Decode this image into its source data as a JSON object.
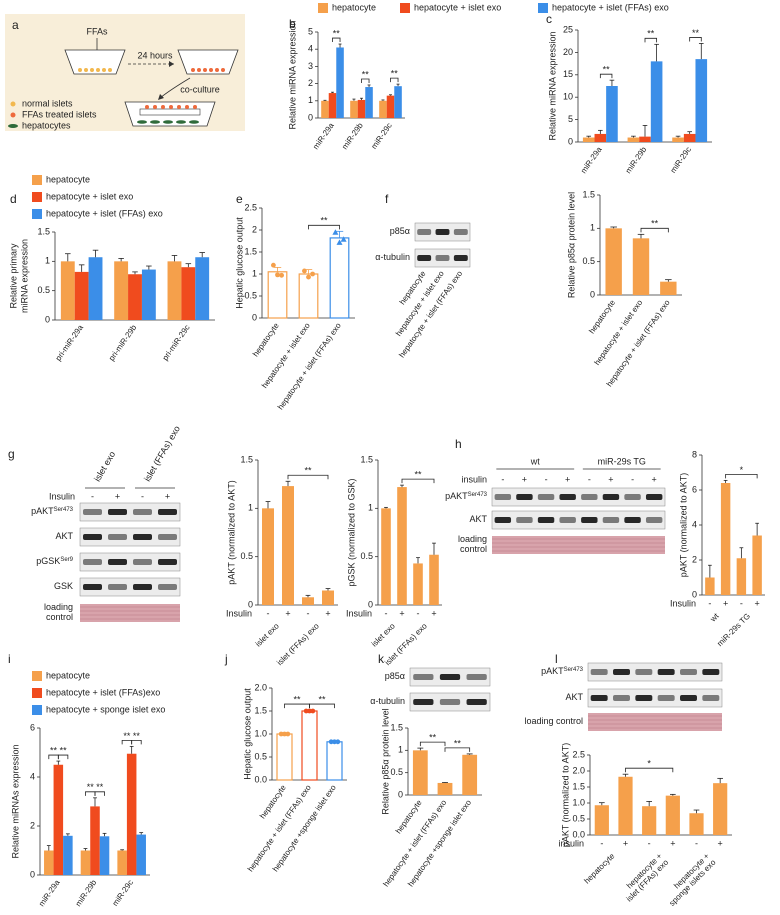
{
  "diagram": {
    "panel": "a",
    "ffas": "FFAs",
    "time": "24 hours",
    "coculture": "co-culture",
    "legend": [
      {
        "label": "normal islets",
        "color": "#f2b84e"
      },
      {
        "label": "FFAs treated islets",
        "color": "#ee6a3c"
      },
      {
        "label": "hepatocytes",
        "color": "#2f6b3a"
      }
    ]
  },
  "blots": [
    {
      "rows": [
        {
          "label": "p85α"
        },
        {
          "label": "α-tubulin"
        }
      ],
      "lanes": [
        "hepatocyte",
        "hepatocyte + islet exo",
        "hepatocyte + islet (FFAs) exo"
      ]
    },
    {
      "groups": [
        "islet exo",
        "islet (FFAs) exo"
      ],
      "insulin_label": "Insulin",
      "lanes": [
        "-",
        "+",
        "-",
        "+"
      ],
      "rows": [
        {
          "label": "pAKT",
          "sup": "Ser473"
        },
        {
          "label": "AKT"
        },
        {
          "label": "pGSK",
          "sup": "Ser9"
        },
        {
          "label": "GSK"
        },
        {
          "label": [
            "loading",
            "control"
          ]
        }
      ]
    },
    {
      "groups": [
        "wt",
        "miR-29s TG"
      ],
      "insulin_label": "insulin",
      "lanes": [
        "-",
        "+",
        "-",
        "+",
        "-",
        "+",
        "-",
        "+"
      ],
      "rows": [
        {
          "label": "pAKT",
          "sup": "Ser473"
        },
        {
          "label": "AKT"
        },
        {
          "label": [
            "loading",
            "control"
          ]
        }
      ]
    },
    {
      "rows": [
        {
          "label": "p85α"
        },
        {
          "label": "α-tubulin"
        }
      ]
    },
    {
      "rows": [
        {
          "label": "pAKT",
          "sup": "Ser473"
        },
        {
          "label": "AKT"
        },
        {
          "label": "loading control"
        }
      ]
    }
  ],
  "chart_data": [
    {
      "panel": "b",
      "type": "bar",
      "ylabel": "Relative miRNA expression",
      "categories": [
        "miR-29a",
        "miR-29b",
        "miR-29c"
      ],
      "series": [
        {
          "name": "hepatocyte",
          "color": "#f5a04b",
          "values": [
            1,
            1,
            1
          ],
          "errors": [
            0.03,
            0.1,
            0.05
          ]
        },
        {
          "name": "hepatocyte + islet exo",
          "color": "#f04b1e",
          "values": [
            1.45,
            1.05,
            1.3
          ],
          "errors": [
            0.05,
            0.1,
            0.05
          ]
        },
        {
          "name": "hepatocyte + islet (FFAs) exo",
          "color": "#3b8ee8",
          "values": [
            4.1,
            1.8,
            1.85
          ],
          "errors": [
            0.2,
            0.12,
            0.12
          ]
        }
      ],
      "ylim": [
        0,
        5
      ],
      "yticks": [
        0,
        1,
        2,
        3,
        4,
        5
      ],
      "legend": "top",
      "annotations": [
        {
          "text": "**",
          "category": 0,
          "between": [
            1,
            2
          ]
        },
        {
          "text": "**",
          "category": 1,
          "between": [
            1,
            2
          ]
        },
        {
          "text": "**",
          "category": 2,
          "between": [
            1,
            2
          ]
        }
      ]
    },
    {
      "panel": "c",
      "type": "bar",
      "ylabel": "Relative miRNA expression",
      "categories": [
        "miR-29a",
        "miR-29b",
        "miR-29c"
      ],
      "series": [
        {
          "color": "#f5a04b",
          "values": [
            1,
            1,
            1
          ],
          "errors": [
            0.3,
            0.3,
            0.3
          ]
        },
        {
          "color": "#f04b1e",
          "values": [
            1.8,
            1.2,
            1.8
          ],
          "errors": [
            0.8,
            2.5,
            0.5
          ]
        },
        {
          "color": "#3b8ee8",
          "values": [
            12.5,
            18,
            18.5
          ],
          "errors": [
            1.3,
            3.8,
            3.5
          ]
        }
      ],
      "ylim": [
        0,
        25
      ],
      "yticks": [
        0,
        5,
        10,
        15,
        20,
        25
      ],
      "annotations": [
        {
          "text": "**",
          "category": 0,
          "between": [
            1,
            2
          ]
        },
        {
          "text": "**",
          "category": 1,
          "between": [
            1,
            2
          ]
        },
        {
          "text": "**",
          "category": 2,
          "between": [
            1,
            2
          ]
        }
      ]
    },
    {
      "panel": "d",
      "type": "bar",
      "ylabel": [
        "Relative primary",
        "miRNA expression"
      ],
      "categories": [
        "pri-miR-29a",
        "pri-miR-29b",
        "pri-miR-29c"
      ],
      "series": [
        {
          "name": "hepatocyte",
          "color": "#f5a04b",
          "values": [
            1,
            1,
            1
          ],
          "errors": [
            0.13,
            0.05,
            0.1
          ]
        },
        {
          "name": "hepatocyte + islet exo",
          "color": "#f04b1e",
          "values": [
            0.82,
            0.78,
            0.9
          ],
          "errors": [
            0.12,
            0.04,
            0.06
          ]
        },
        {
          "name": "hepatocyte + islet (FFAs) exo",
          "color": "#3b8ee8",
          "values": [
            1.07,
            0.86,
            1.07
          ],
          "errors": [
            0.12,
            0.06,
            0.08
          ]
        }
      ],
      "ylim": [
        0,
        1.5
      ],
      "yticks": [
        0,
        0.5,
        1,
        1.5
      ],
      "legend": "upper left"
    },
    {
      "panel": "e",
      "type": "bar",
      "ylabel": "Hepatic glucose output",
      "categories": [
        "hepatocyte",
        "hepatocyte + islet exo",
        "hepatocyte + islet (FFAs) exo"
      ],
      "values": [
        1.05,
        1.0,
        1.82
      ],
      "errors": [
        0.1,
        0.1,
        0.15
      ],
      "colors": [
        "#f5a04b",
        "#f5a04b",
        "#3b8ee8"
      ],
      "hollow": true,
      "points": [
        [
          1.2,
          0.98,
          0.97
        ],
        [
          1.07,
          0.93,
          1.0
        ],
        [
          1.95,
          1.72,
          1.79
        ]
      ],
      "markers": [
        "circle",
        "circle",
        "triangle"
      ],
      "ylim": [
        0,
        2.5
      ],
      "yticks": [
        0,
        0.5,
        1,
        1.5,
        2,
        2.5
      ],
      "annotations": [
        {
          "text": "**",
          "between": [
            1,
            2
          ]
        }
      ]
    },
    {
      "panel": "f",
      "type": "bar",
      "ylabel": "Relative p85α protein level",
      "categories": [
        "hepatocyte",
        "hepatocyte + islet exo",
        "hepatocyte + islet (FFAs) exo"
      ],
      "values": [
        1,
        0.85,
        0.2
      ],
      "errors": [
        0.02,
        0.06,
        0.03
      ],
      "color": "#f5a04b",
      "ylim": [
        0,
        1.5
      ],
      "yticks": [
        0,
        0.5,
        1,
        1.5
      ],
      "annotations": [
        {
          "text": "**",
          "between": [
            1,
            2
          ]
        }
      ]
    },
    {
      "panel": "g",
      "type": "bar",
      "ylabel": "pAKT (normalized to AKT)",
      "categories": [
        "-",
        "+",
        "-",
        "+"
      ],
      "row_label": "Insulin",
      "group_labels": [
        "islet exo",
        "islet (FFAs) exo"
      ],
      "values": [
        1,
        1.23,
        0.08,
        0.15
      ],
      "errors": [
        0.07,
        0.05,
        0.02,
        0.02
      ],
      "color": "#f5a04b",
      "ylim": [
        0,
        1.5
      ],
      "yticks": [
        0,
        0.5,
        1,
        1.5
      ],
      "annotations": [
        {
          "text": "**",
          "between": [
            1,
            3
          ]
        }
      ]
    },
    {
      "type": "bar",
      "ylabel": "pGSK (normalized to GSK)",
      "categories": [
        "-",
        "+",
        "-",
        "+"
      ],
      "row_label": "Insulin",
      "group_labels": [
        "islet exo",
        "islet (FFAs) exo"
      ],
      "values": [
        1,
        1.22,
        0.43,
        0.52
      ],
      "errors": [
        0.01,
        0.02,
        0.06,
        0.12
      ],
      "color": "#f5a04b",
      "ylim": [
        0,
        1.5
      ],
      "yticks": [
        0,
        0.5,
        1,
        1.5
      ],
      "annotations": [
        {
          "text": "**",
          "between": [
            1,
            3
          ]
        }
      ]
    },
    {
      "panel": "h",
      "type": "bar",
      "ylabel": "pAKT (normalized to AKT)",
      "categories": [
        "-",
        "+",
        "-",
        "+"
      ],
      "row_label": "Insulin",
      "group_labels": [
        "wt",
        "miR-29s TG"
      ],
      "values": [
        1,
        6.4,
        2.1,
        3.4
      ],
      "errors": [
        0.7,
        0.15,
        0.6,
        0.7
      ],
      "color": "#f5a04b",
      "ylim": [
        0,
        8
      ],
      "yticks": [
        0,
        2,
        4,
        6,
        8
      ],
      "annotations": [
        {
          "text": "*",
          "between": [
            1,
            3
          ]
        }
      ]
    },
    {
      "panel": "i",
      "type": "bar",
      "ylabel": "Relative miRNAs expression",
      "categories": [
        "miR-29a",
        "miR-29b",
        "miR-29c"
      ],
      "series": [
        {
          "name": "hepatocyte",
          "color": "#f5a04b",
          "values": [
            1,
            1,
            1
          ],
          "errors": [
            0.2,
            0.08,
            0.03
          ]
        },
        {
          "name": "hepatocyte + islet (FFAs)exo",
          "color": "#f04b1e",
          "values": [
            4.5,
            2.8,
            4.95
          ],
          "errors": [
            0.15,
            0.35,
            0.3
          ]
        },
        {
          "name": "hepatocyte + sponge islet exo",
          "color": "#3b8ee8",
          "values": [
            1.6,
            1.58,
            1.65
          ],
          "errors": [
            0.08,
            0.12,
            0.08
          ]
        }
      ],
      "ylim": [
        0,
        6
      ],
      "yticks": [
        0,
        2,
        4,
        6
      ],
      "legend": "upper left",
      "annotations": [
        {
          "text": "**",
          "category": 0,
          "between": [
            0,
            1
          ]
        },
        {
          "text": "**",
          "category": 0,
          "between": [
            1,
            2
          ]
        },
        {
          "text": "**",
          "category": 1,
          "between": [
            0,
            1
          ]
        },
        {
          "text": "**",
          "category": 1,
          "between": [
            1,
            2
          ]
        },
        {
          "text": "**",
          "category": 2,
          "between": [
            0,
            1
          ]
        },
        {
          "text": "**",
          "category": 2,
          "between": [
            1,
            2
          ]
        }
      ]
    },
    {
      "panel": "j",
      "type": "bar",
      "ylabel": "Hepatic glucose output",
      "categories": [
        "hepatocyte",
        "hepatocyte + islet (FFAs) exo",
        "hepatocyte +sponge islet exo"
      ],
      "values": [
        1.0,
        1.5,
        0.83
      ],
      "errors": [
        0.02,
        0.02,
        0.02
      ],
      "colors": [
        "#f5a04b",
        "#f04b1e",
        "#3b8ee8"
      ],
      "hollow": true,
      "points": [
        [
          1.0,
          1.0,
          1.0
        ],
        [
          1.5,
          1.5,
          1.5
        ],
        [
          0.83,
          0.83,
          0.83
        ]
      ],
      "ylim": [
        0,
        2
      ],
      "yticks": [
        {
          "value": 0,
          "label": "0.0"
        },
        0.5,
        {
          "value": 1,
          "label": "1.0"
        },
        1.5,
        {
          "value": 2,
          "label": "2.0"
        }
      ],
      "annotations": [
        {
          "text": "**",
          "between": [
            0,
            1
          ]
        },
        {
          "text": "**",
          "between": [
            1,
            2
          ]
        }
      ]
    },
    {
      "panel": "k",
      "type": "bar",
      "ylabel": "Relative p85α protein level",
      "categories": [
        "hepatocyte",
        "hepatocyte + islet (FFAs) exo",
        "hepatocyte +sponge islet exo"
      ],
      "values": [
        1,
        0.27,
        0.9
      ],
      "errors": [
        0.05,
        0.01,
        0.02
      ],
      "color": "#f5a04b",
      "ylim": [
        0,
        1.5
      ],
      "yticks": [
        0,
        0.5,
        1,
        1.5
      ],
      "annotations": [
        {
          "text": "**",
          "between": [
            0,
            1
          ]
        },
        {
          "text": "**",
          "between": [
            1,
            2
          ]
        }
      ]
    },
    {
      "panel": "l",
      "type": "bar",
      "ylabel": "pAKT (normalized to AKT)",
      "categories": [
        "-",
        "+",
        "-",
        "+",
        "-",
        "+"
      ],
      "row_label": "insulin",
      "group_labels": [
        "hepatocyte",
        [
          "hepatocyte +",
          "islet (FFAs) exo"
        ],
        [
          "hepatocyte +",
          "sponge islets exo"
        ]
      ],
      "values": [
        0.93,
        1.82,
        0.9,
        1.23,
        0.68,
        1.62
      ],
      "errors": [
        0.08,
        0.08,
        0.15,
        0.04,
        0.1,
        0.15
      ],
      "color": "#f5a04b",
      "ylim": [
        0,
        2.5
      ],
      "yticks": [
        {
          "value": 0,
          "label": "0.0"
        },
        0.5,
        {
          "value": 1,
          "label": "1.0"
        },
        1.5,
        {
          "value": 2,
          "label": "2.0"
        },
        2.5
      ],
      "annotations": [
        {
          "text": "*",
          "between": [
            1,
            3
          ]
        }
      ]
    }
  ]
}
